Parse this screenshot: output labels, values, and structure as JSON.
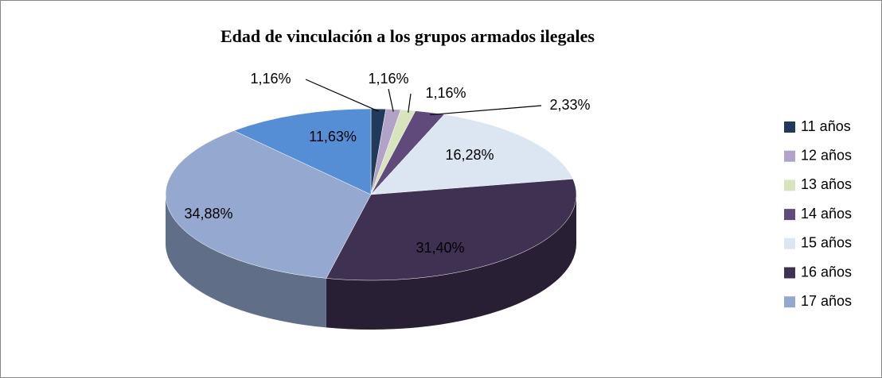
{
  "chart_data": {
    "type": "pie",
    "title": "Edad de vinculación a los grupos armados ilegales",
    "categories": [
      "11 años",
      "12 años",
      "13 años",
      "14 años",
      "15 años",
      "16 años",
      "17 años",
      null
    ],
    "values": [
      1.16,
      1.16,
      1.16,
      2.33,
      16.28,
      31.4,
      34.88,
      11.63
    ],
    "value_labels": [
      "1,16%",
      "1,16%",
      "1,16%",
      "2,33%",
      "16,28%",
      "31,40%",
      "34,88%",
      "11,63%"
    ],
    "colors": [
      "#1f3a5a",
      "#b3a2c7",
      "#d7e4bd",
      "#604a7b",
      "#dce6f2",
      "#3f3151",
      "#95a9d0",
      "#558ed5"
    ],
    "legend": "right",
    "three_d": true
  }
}
